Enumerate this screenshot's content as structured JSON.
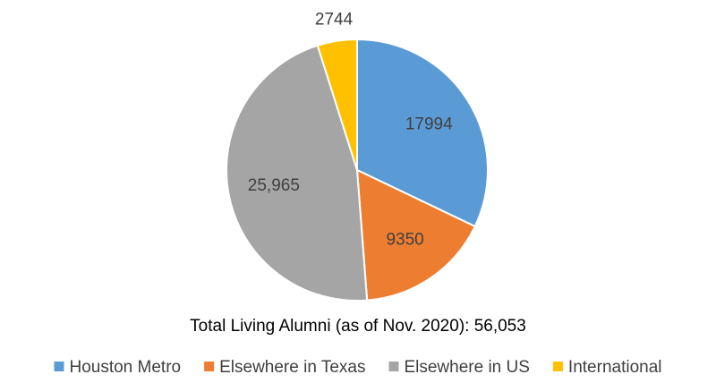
{
  "chart_data": {
    "type": "pie",
    "title": "Total Living Alumni (as of Nov. 2020): 56,053",
    "categories": [
      "Houston Metro",
      "Elsewhere in Texas",
      "Elsewhere in US",
      "International"
    ],
    "values": [
      17994,
      9350,
      25965,
      2744
    ],
    "value_labels": [
      "17994",
      "9350",
      "25,965",
      "2744"
    ],
    "colors": [
      "#5b9bd5",
      "#ed7d31",
      "#a5a5a5",
      "#ffc000"
    ],
    "legend": "bottom"
  }
}
